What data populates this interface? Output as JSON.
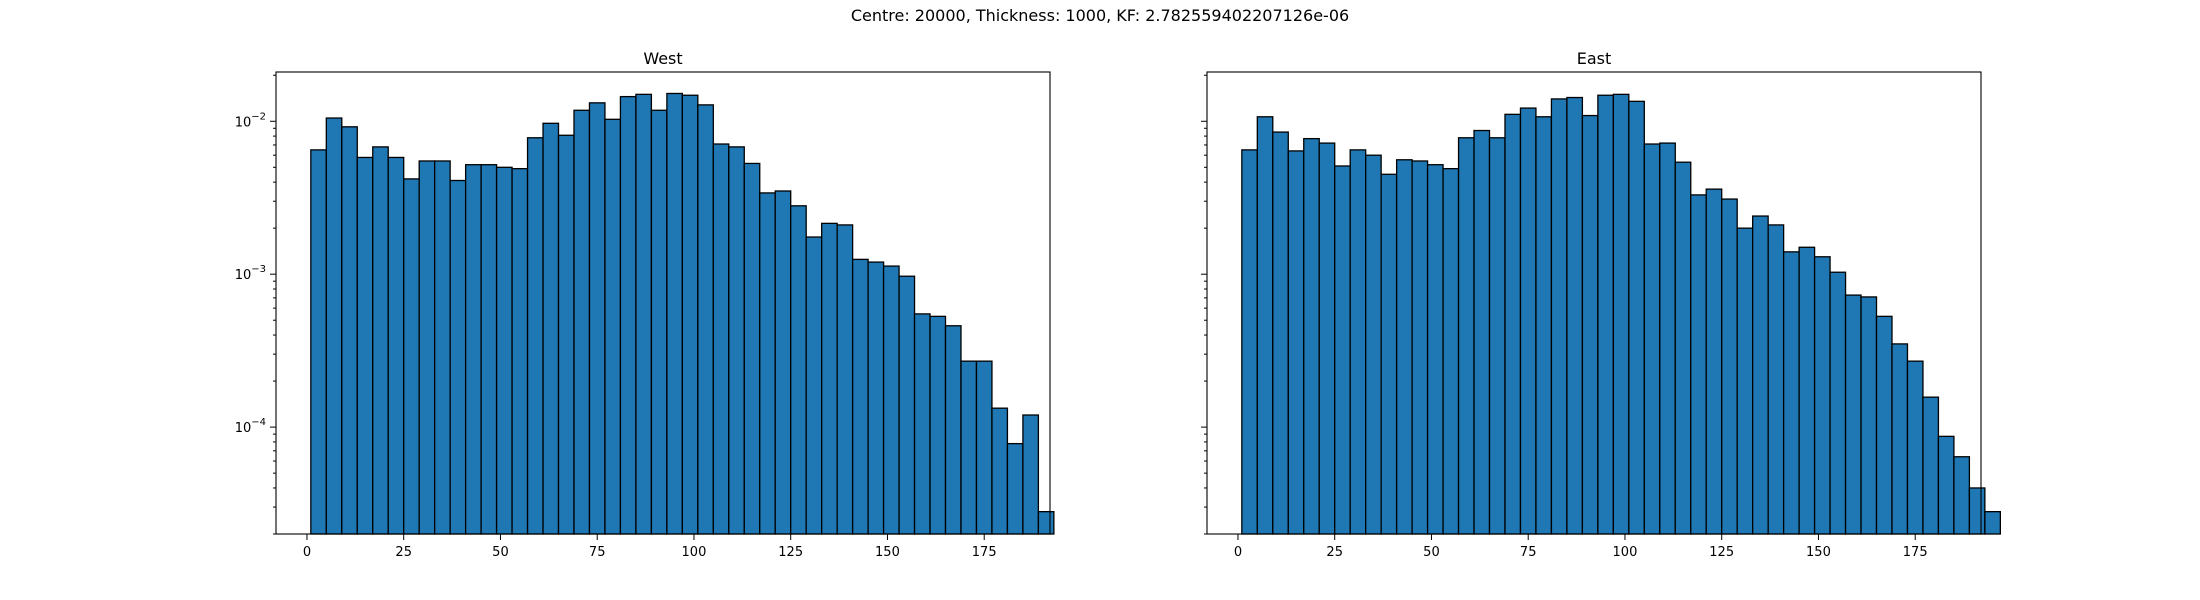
{
  "figure": {
    "suptitle": "Centre: 20000, Thickness: 1000, KF: 2.782559402207126e-06"
  },
  "style": {
    "bar_fill": "#1f77b4",
    "bar_edge": "#000000"
  },
  "chart_data": [
    {
      "type": "bar",
      "title": "West",
      "xlabel": "",
      "ylabel": "",
      "yscale": "log",
      "xlim": [
        -8,
        192
      ],
      "ylim": [
        2e-05,
        0.021
      ],
      "xticks": [
        0,
        25,
        50,
        75,
        100,
        125,
        150,
        175
      ],
      "yticks": [
        {
          "value": 0.0001,
          "base": "10",
          "exp": "−4"
        },
        {
          "value": 0.001,
          "base": "10",
          "exp": "−3"
        },
        {
          "value": 0.01,
          "base": "10",
          "exp": "−2"
        }
      ],
      "bin_start": 1,
      "bin_width": 4,
      "values": [
        0.0065,
        0.0105,
        0.0092,
        0.0058,
        0.0068,
        0.0058,
        0.0042,
        0.0055,
        0.0055,
        0.0041,
        0.0052,
        0.0052,
        0.005,
        0.0049,
        0.0078,
        0.0097,
        0.0081,
        0.0118,
        0.0132,
        0.0103,
        0.0145,
        0.015,
        0.0118,
        0.0152,
        0.0148,
        0.0128,
        0.0071,
        0.0068,
        0.0053,
        0.0034,
        0.0035,
        0.0028,
        0.00175,
        0.00215,
        0.0021,
        0.00125,
        0.0012,
        0.00113,
        0.00097,
        0.00055,
        0.00053,
        0.00046,
        0.00027,
        0.00027,
        0.000133,
        7.8e-05,
        0.00012,
        2.8e-05
      ]
    },
    {
      "type": "bar",
      "title": "East",
      "xlabel": "",
      "ylabel": "",
      "yscale": "log",
      "xlim": [
        -8,
        192
      ],
      "ylim": [
        2e-05,
        0.021
      ],
      "xticks": [
        0,
        25,
        50,
        75,
        100,
        125,
        150,
        175
      ],
      "yticks": [],
      "bin_start": 1,
      "bin_width": 4,
      "values": [
        0.0065,
        0.0107,
        0.0085,
        0.0064,
        0.0077,
        0.0072,
        0.0051,
        0.0065,
        0.006,
        0.0045,
        0.0056,
        0.0055,
        0.0052,
        0.0049,
        0.0078,
        0.0087,
        0.0078,
        0.0111,
        0.0122,
        0.0107,
        0.014,
        0.0143,
        0.0109,
        0.0148,
        0.015,
        0.0135,
        0.0071,
        0.0072,
        0.0054,
        0.0033,
        0.0036,
        0.0031,
        0.002,
        0.0024,
        0.0021,
        0.0014,
        0.0015,
        0.0013,
        0.00103,
        0.00073,
        0.00071,
        0.00053,
        0.00035,
        0.00027,
        0.000157,
        8.7e-05,
        6.4e-05,
        4e-05,
        2.8e-05
      ]
    }
  ]
}
